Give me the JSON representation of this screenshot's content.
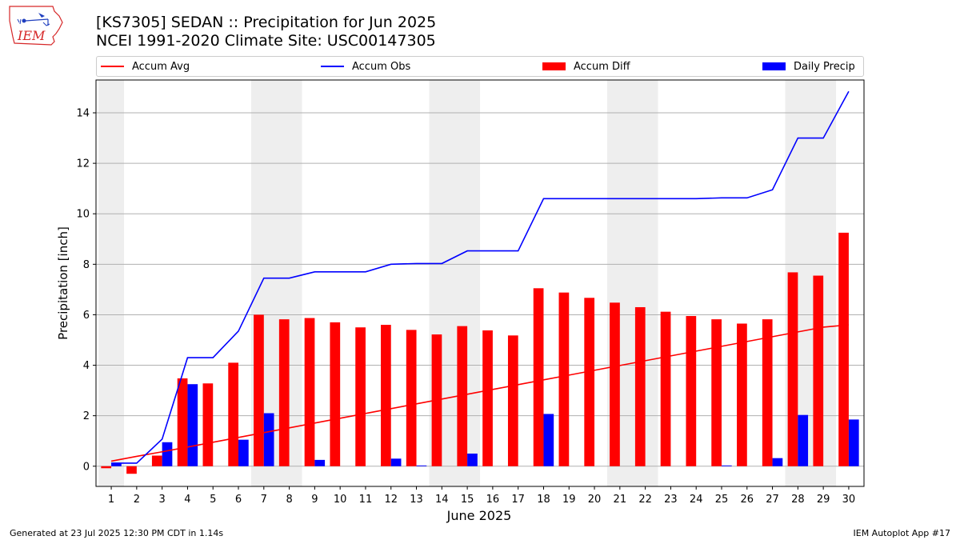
{
  "header": {
    "title_line1": "[KS7305] SEDAN :: Precipitation for Jun 2025",
    "title_line2": "NCEI 1991-2020 Climate Site: USC00147305"
  },
  "logo": {
    "text": "IEM",
    "icon": "iem-iowa-logo",
    "color": "#d62728"
  },
  "footer": {
    "left": "Generated at 23 Jul 2025 12:30 PM CDT in 1.14s",
    "right": "IEM Autoplot App #17"
  },
  "legend": [
    {
      "label": "Accum Avg",
      "kind": "line",
      "color": "#ff0000"
    },
    {
      "label": "Accum Obs",
      "kind": "line",
      "color": "#0000ff"
    },
    {
      "label": "Accum Diff",
      "kind": "bar",
      "color": "#ff0000"
    },
    {
      "label": "Daily Precip",
      "kind": "bar",
      "color": "#0000ff"
    }
  ],
  "chart_data": {
    "type": "bar",
    "xlabel": "June 2025",
    "ylabel": "Precipitation [inch]",
    "categories": [
      "1",
      "2",
      "3",
      "4",
      "5",
      "6",
      "7",
      "8",
      "9",
      "10",
      "11",
      "12",
      "13",
      "14",
      "15",
      "16",
      "17",
      "18",
      "19",
      "20",
      "21",
      "22",
      "23",
      "24",
      "25",
      "26",
      "27",
      "28",
      "29",
      "30"
    ],
    "ylim": [
      -0.8,
      15.3
    ],
    "yticks": [
      0,
      2,
      4,
      6,
      8,
      10,
      12,
      14
    ],
    "grid": "horizontal",
    "legend_position": "top",
    "weekend_shading": [
      [
        1,
        1
      ],
      [
        7,
        8
      ],
      [
        14,
        15
      ],
      [
        21,
        22
      ],
      [
        28,
        29
      ]
    ],
    "shading_color": "#eeeeee",
    "series": [
      {
        "name": "Accum Diff",
        "kind": "bar",
        "color": "#ff0000",
        "values": [
          -0.08,
          -0.3,
          0.42,
          3.48,
          3.28,
          4.1,
          6.0,
          5.82,
          5.87,
          5.7,
          5.5,
          5.6,
          5.4,
          5.22,
          5.55,
          5.38,
          5.18,
          7.05,
          6.88,
          6.67,
          6.48,
          6.3,
          6.12,
          5.95,
          5.82,
          5.65,
          5.82,
          7.68,
          7.55,
          9.25
        ]
      },
      {
        "name": "Daily Precip",
        "kind": "bar",
        "color": "#0000ff",
        "values": [
          0.12,
          0.0,
          0.95,
          3.25,
          0.0,
          1.05,
          2.1,
          0.0,
          0.25,
          0.0,
          0.0,
          0.3,
          0.03,
          0.0,
          0.5,
          0.0,
          0.0,
          2.07,
          0.0,
          0.0,
          0.0,
          0.0,
          0.0,
          0.0,
          0.03,
          0.0,
          0.32,
          2.03,
          0.0,
          1.85
        ]
      },
      {
        "name": "Accum Avg",
        "kind": "line",
        "color": "#ff0000",
        "values": [
          0.2,
          0.39,
          0.57,
          0.76,
          0.95,
          1.14,
          1.33,
          1.52,
          1.71,
          1.9,
          2.09,
          2.28,
          2.47,
          2.66,
          2.85,
          3.04,
          3.23,
          3.42,
          3.61,
          3.8,
          3.99,
          4.18,
          4.37,
          4.56,
          4.75,
          4.94,
          5.13,
          5.32,
          5.51,
          5.6
        ]
      },
      {
        "name": "Accum Obs",
        "kind": "line",
        "color": "#0000ff",
        "values": [
          0.12,
          0.12,
          1.07,
          4.3,
          4.3,
          5.35,
          7.45,
          7.45,
          7.7,
          7.7,
          7.7,
          8.0,
          8.03,
          8.03,
          8.53,
          8.53,
          8.53,
          10.6,
          10.6,
          10.6,
          10.6,
          10.6,
          10.6,
          10.6,
          10.63,
          10.63,
          10.95,
          13.0,
          13.0,
          14.85
        ]
      }
    ]
  }
}
